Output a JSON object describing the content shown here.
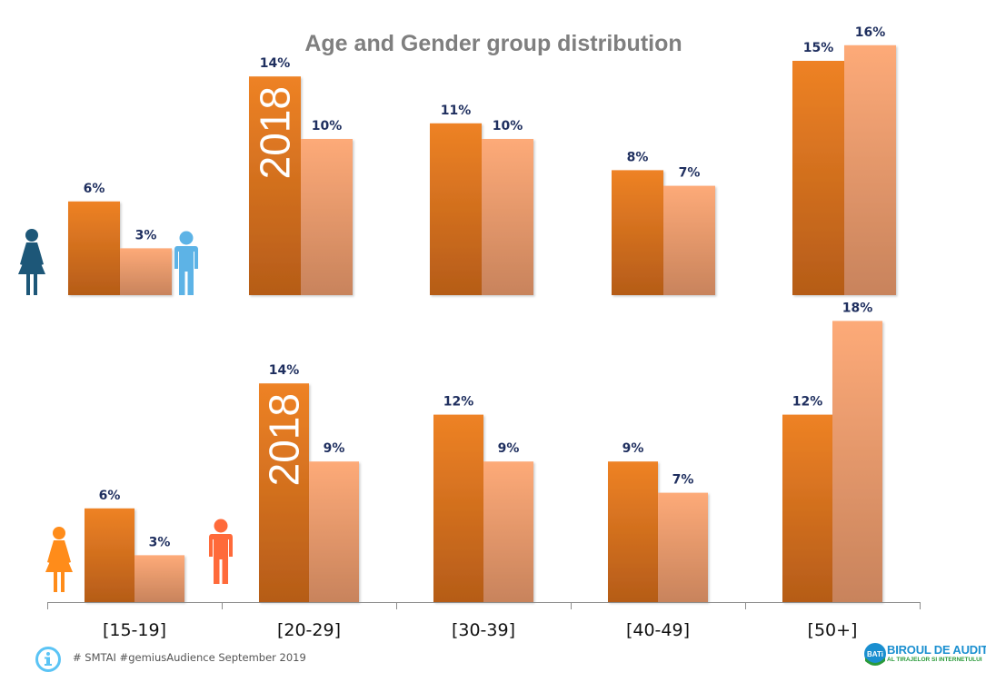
{
  "chart_data": [
    {
      "type": "bar",
      "panel": "top",
      "title": "Age and Gender group distribution",
      "year_label": "2018",
      "categories": [
        "[15-19]",
        "[20-29]",
        "[30-39]",
        "[40-49]",
        "[50+]"
      ],
      "series": [
        {
          "name": "Female",
          "icon": "female-icon",
          "values": [
            6,
            14,
            11,
            8,
            15
          ],
          "labels": [
            "6%",
            "14%",
            "11%",
            "8%",
            "15%"
          ]
        },
        {
          "name": "Male",
          "icon": "male-icon",
          "values": [
            3,
            10,
            10,
            7,
            16
          ],
          "labels": [
            "3%",
            "10%",
            "10%",
            "7%",
            "16%"
          ]
        }
      ],
      "ylim": [
        0,
        20
      ],
      "grid": false,
      "legend": "icons-left"
    },
    {
      "type": "bar",
      "panel": "bottom",
      "year_label": "2018",
      "categories": [
        "[15-19]",
        "[20-29]",
        "[30-39]",
        "[40-49]",
        "[50+]"
      ],
      "series": [
        {
          "name": "Female",
          "icon": "female-icon",
          "values": [
            6,
            14,
            12,
            9,
            12
          ],
          "labels": [
            "6%",
            "14%",
            "12%",
            "9%",
            "12%"
          ]
        },
        {
          "name": "Male",
          "icon": "male-icon",
          "values": [
            3,
            9,
            9,
            7,
            18
          ],
          "labels": [
            "3%",
            "9%",
            "9%",
            "7%",
            "18%"
          ]
        }
      ],
      "ylim": [
        0,
        20
      ],
      "grid": false,
      "legend": "icons-left"
    }
  ],
  "colors": {
    "female_bar_top": "#ee8225",
    "female_bar_bottom": "#b55c18",
    "male_bar_top": "#fdaa78",
    "male_bar_bottom": "#c8835c",
    "value_label": "#1f2f5f",
    "title": "#7f7f7f",
    "top_female_icon": "#1d5778",
    "top_male_icon": "#5db3e6",
    "bottom_female_icon": "#ff8c1a",
    "bottom_male_icon": "#ff6a3a",
    "axis": "#8c8c8c"
  },
  "footer": {
    "note": "# SMTAI #gemiusAudience September  2019",
    "info_icon": "info-icon",
    "logo_title": "BIROUL DE AUDIT",
    "logo_subtitle": "AL TIRAJELOR SI INTERNETULUI",
    "logo_badge": "BATi"
  }
}
